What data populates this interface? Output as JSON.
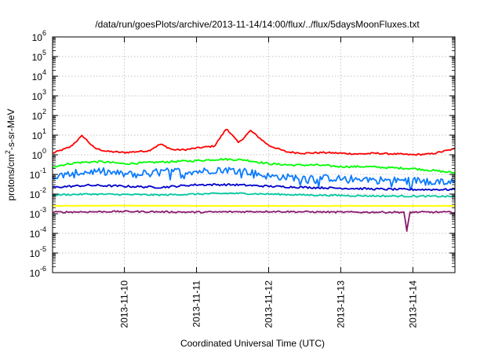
{
  "chart_data": {
    "type": "line",
    "title": "/data/run/goesPlots/archive/2013-11-14/14:00/flux/../flux/5daysMoonFluxes.txt",
    "xlabel": "Coordinated Universal Time (UTC)",
    "ylabel": {
      "prefix": "protons/cm",
      "sup": "2",
      "suffix": "-s-sr-MeV"
    },
    "y_scale": "log",
    "ylim_exponents": [
      -6,
      6
    ],
    "y_tick_base": "10",
    "y_tick_exponents": [
      "6",
      "5",
      "4",
      "3",
      "2",
      "1",
      "0",
      "-1",
      "-2",
      "-3",
      "-4",
      "-5",
      "-6"
    ],
    "x_range_days": [
      "2013-11-09 00:05",
      "2013-11-14 14:00"
    ],
    "x_ticks": [
      {
        "label": "2013-11-10",
        "date": "2013-11-10"
      },
      {
        "label": "2013-11-11",
        "date": "2013-11-11"
      },
      {
        "label": "2013-11-12",
        "date": "2013-11-12"
      },
      {
        "label": "2013-11-13",
        "date": "2013-11-13"
      },
      {
        "label": "2013-11-14",
        "date": "2013-11-14"
      }
    ],
    "grid": true,
    "legend": "none",
    "series": [
      {
        "color": "#ff0000",
        "x": [
          "2013-11-09 00:05",
          "2013-11-09 06:00",
          "2013-11-09 10:00",
          "2013-11-09 14:00",
          "2013-11-09 18:00",
          "2013-11-10 00:00",
          "2013-11-10 08:00",
          "2013-11-10 12:00",
          "2013-11-10 16:00",
          "2013-11-10 20:00",
          "2013-11-11 00:00",
          "2013-11-11 06:00",
          "2013-11-11 10:00",
          "2013-11-11 14:00",
          "2013-11-11 18:00",
          "2013-11-12 00:00",
          "2013-11-12 06:00",
          "2013-11-12 12:00",
          "2013-11-12 18:00",
          "2013-11-13 00:00",
          "2013-11-13 06:00",
          "2013-11-13 12:00",
          "2013-11-13 18:00",
          "2013-11-14 00:00",
          "2013-11-14 06:00",
          "2013-11-14 14:00"
        ],
        "y": [
          1.2,
          2.5,
          9.5,
          2.2,
          1.5,
          1.3,
          1.6,
          3.5,
          1.8,
          1.8,
          2.2,
          2.8,
          22,
          4.0,
          17,
          3.0,
          1.4,
          1.2,
          1.3,
          1.2,
          1.1,
          1.2,
          1.1,
          1.0,
          1.1,
          2.0
        ]
      },
      {
        "color": "#00ff00",
        "x": [
          "2013-11-09 00:05",
          "2013-11-09 08:00",
          "2013-11-09 16:00",
          "2013-11-10 00:00",
          "2013-11-10 08:00",
          "2013-11-10 16:00",
          "2013-11-11 00:00",
          "2013-11-11 08:00",
          "2013-11-11 16:00",
          "2013-11-12 00:00",
          "2013-11-12 08:00",
          "2013-11-12 16:00",
          "2013-11-13 00:00",
          "2013-11-13 08:00",
          "2013-11-13 16:00",
          "2013-11-14 00:00",
          "2013-11-14 08:00",
          "2013-11-14 14:00"
        ],
        "y": [
          0.25,
          0.4,
          0.45,
          0.35,
          0.4,
          0.45,
          0.5,
          0.6,
          0.55,
          0.35,
          0.3,
          0.3,
          0.25,
          0.25,
          0.22,
          0.2,
          0.15,
          0.12
        ]
      },
      {
        "color": "#0a7aff",
        "x": [
          "2013-11-09 00:05",
          "2013-11-09 08:00",
          "2013-11-09 16:00",
          "2013-11-10 00:00",
          "2013-11-10 08:00",
          "2013-11-10 16:00",
          "2013-11-11 00:00",
          "2013-11-11 08:00",
          "2013-11-11 16:00",
          "2013-11-12 00:00",
          "2013-11-12 08:00",
          "2013-11-12 16:00",
          "2013-11-13 00:00",
          "2013-11-13 08:00",
          "2013-11-13 16:00",
          "2013-11-14 00:00",
          "2013-11-14 08:00",
          "2013-11-14 14:00"
        ],
        "y": [
          0.07,
          0.12,
          0.15,
          0.1,
          0.12,
          0.15,
          0.14,
          0.18,
          0.15,
          0.08,
          0.07,
          0.07,
          0.06,
          0.06,
          0.05,
          0.05,
          0.045,
          0.04
        ]
      },
      {
        "color": "#0000cc",
        "x": [
          "2013-11-09 00:05",
          "2013-11-09 12:00",
          "2013-11-10 00:00",
          "2013-11-10 12:00",
          "2013-11-11 00:00",
          "2013-11-11 12:00",
          "2013-11-12 00:00",
          "2013-11-12 12:00",
          "2013-11-13 00:00",
          "2013-11-13 12:00",
          "2013-11-14 00:00",
          "2013-11-14 14:00"
        ],
        "y": [
          0.022,
          0.028,
          0.025,
          0.022,
          0.03,
          0.03,
          0.025,
          0.022,
          0.02,
          0.018,
          0.017,
          0.017
        ]
      },
      {
        "color": "#00c8a0",
        "x": [
          "2013-11-09 00:05",
          "2013-11-09 12:00",
          "2013-11-10 00:00",
          "2013-11-10 12:00",
          "2013-11-11 00:00",
          "2013-11-11 12:00",
          "2013-11-12 00:00",
          "2013-11-12 12:00",
          "2013-11-13 00:00",
          "2013-11-13 12:00",
          "2013-11-14 00:00",
          "2013-11-14 14:00"
        ],
        "y": [
          0.009,
          0.01,
          0.0095,
          0.009,
          0.01,
          0.011,
          0.01,
          0.009,
          0.0085,
          0.008,
          0.0078,
          0.0075
        ]
      },
      {
        "color": "#ffff00",
        "x": [
          "2013-11-09 00:05",
          "2013-11-10 00:00",
          "2013-11-11 00:00",
          "2013-11-12 00:00",
          "2013-11-13 00:00",
          "2013-11-14 00:00",
          "2013-11-14 14:00"
        ],
        "y": [
          0.0025,
          0.0026,
          0.0025,
          0.0025,
          0.0025,
          0.0025,
          0.0025
        ]
      },
      {
        "color": "#8b1a6b",
        "x": [
          "2013-11-09 00:05",
          "2013-11-10 00:00",
          "2013-11-11 00:00",
          "2013-11-12 00:00",
          "2013-11-13 00:00",
          "2013-11-13 21:00",
          "2013-11-13 22:00",
          "2013-11-13 23:00",
          "2013-11-14 00:00",
          "2013-11-14 14:00"
        ],
        "y": [
          0.0012,
          0.0013,
          0.0012,
          0.0013,
          0.0012,
          0.0012,
          0.00013,
          0.0012,
          0.0012,
          0.0012
        ]
      }
    ]
  }
}
